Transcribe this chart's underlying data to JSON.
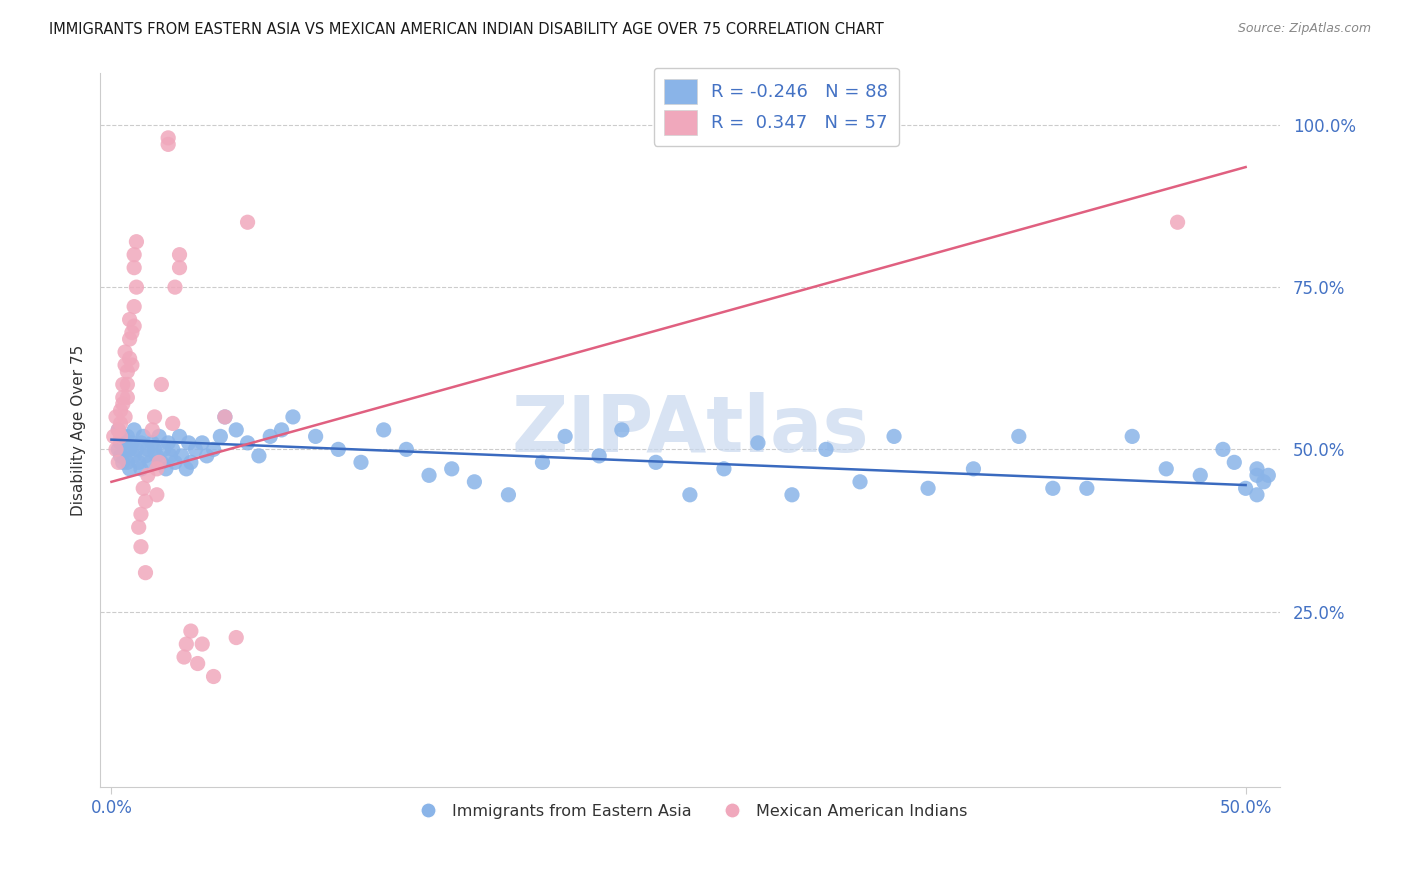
{
  "title": "IMMIGRANTS FROM EASTERN ASIA VS MEXICAN AMERICAN INDIAN DISABILITY AGE OVER 75 CORRELATION CHART",
  "source": "Source: ZipAtlas.com",
  "ylabel": "Disability Age Over 75",
  "legend_blue_r": "R = -0.246",
  "legend_blue_n": "N = 88",
  "legend_pink_r": "R =  0.347",
  "legend_pink_n": "N = 57",
  "legend_blue_series": "Immigrants from Eastern Asia",
  "legend_pink_series": "Mexican American Indians",
  "blue_color": "#8ab4e8",
  "pink_color": "#f0a8bc",
  "blue_line_color": "#3a6abf",
  "pink_line_color": "#e06080",
  "grid_color": "#cccccc",
  "bg_color": "#ffffff",
  "title_color": "#1a1a1a",
  "axis_tick_color": "#4472c4",
  "ylabel_color": "#333333",
  "watermark_color": "#c8d8ee",
  "source_color": "#888888",
  "blue_line_x": [
    0.0,
    0.5
  ],
  "blue_line_y": [
    0.515,
    0.445
  ],
  "pink_line_x": [
    0.0,
    0.5
  ],
  "pink_line_y": [
    0.45,
    0.935
  ],
  "xlim": [
    -0.005,
    0.515
  ],
  "ylim": [
    -0.02,
    1.08
  ],
  "xticks": [
    0.0,
    0.5
  ],
  "xticklabels": [
    "0.0%",
    "50.0%"
  ],
  "yticks": [
    0.25,
    0.5,
    0.75,
    1.0
  ],
  "yticklabels": [
    "25.0%",
    "50.0%",
    "75.0%",
    "100.0%"
  ],
  "blue_x": [
    0.003,
    0.003,
    0.004,
    0.004,
    0.005,
    0.005,
    0.006,
    0.006,
    0.007,
    0.007,
    0.008,
    0.008,
    0.009,
    0.01,
    0.01,
    0.011,
    0.012,
    0.013,
    0.013,
    0.014,
    0.015,
    0.016,
    0.017,
    0.018,
    0.019,
    0.02,
    0.021,
    0.022,
    0.023,
    0.024,
    0.025,
    0.026,
    0.027,
    0.028,
    0.03,
    0.031,
    0.033,
    0.034,
    0.035,
    0.037,
    0.04,
    0.042,
    0.045,
    0.048,
    0.05,
    0.055,
    0.06,
    0.065,
    0.07,
    0.075,
    0.08,
    0.09,
    0.1,
    0.11,
    0.12,
    0.13,
    0.14,
    0.15,
    0.16,
    0.175,
    0.19,
    0.2,
    0.215,
    0.225,
    0.24,
    0.255,
    0.27,
    0.285,
    0.3,
    0.315,
    0.33,
    0.345,
    0.36,
    0.38,
    0.4,
    0.415,
    0.43,
    0.45,
    0.465,
    0.48,
    0.49,
    0.495,
    0.5,
    0.505,
    0.505,
    0.505,
    0.508,
    0.51
  ],
  "blue_y": [
    0.5,
    0.53,
    0.51,
    0.49,
    0.52,
    0.48,
    0.51,
    0.5,
    0.52,
    0.48,
    0.5,
    0.47,
    0.51,
    0.49,
    0.53,
    0.5,
    0.48,
    0.51,
    0.47,
    0.52,
    0.49,
    0.5,
    0.48,
    0.51,
    0.5,
    0.49,
    0.52,
    0.48,
    0.5,
    0.47,
    0.51,
    0.49,
    0.5,
    0.48,
    0.52,
    0.49,
    0.47,
    0.51,
    0.48,
    0.5,
    0.51,
    0.49,
    0.5,
    0.52,
    0.55,
    0.53,
    0.51,
    0.49,
    0.52,
    0.53,
    0.55,
    0.52,
    0.5,
    0.48,
    0.53,
    0.5,
    0.46,
    0.47,
    0.45,
    0.43,
    0.48,
    0.52,
    0.49,
    0.53,
    0.48,
    0.43,
    0.47,
    0.51,
    0.43,
    0.5,
    0.45,
    0.52,
    0.44,
    0.47,
    0.52,
    0.44,
    0.44,
    0.52,
    0.47,
    0.46,
    0.5,
    0.48,
    0.44,
    0.46,
    0.47,
    0.43,
    0.45,
    0.46
  ],
  "pink_x": [
    0.001,
    0.002,
    0.002,
    0.003,
    0.003,
    0.004,
    0.004,
    0.004,
    0.005,
    0.005,
    0.005,
    0.006,
    0.006,
    0.006,
    0.007,
    0.007,
    0.007,
    0.008,
    0.008,
    0.008,
    0.009,
    0.009,
    0.01,
    0.01,
    0.01,
    0.01,
    0.011,
    0.011,
    0.012,
    0.013,
    0.013,
    0.014,
    0.015,
    0.015,
    0.016,
    0.018,
    0.019,
    0.02,
    0.02,
    0.021,
    0.022,
    0.025,
    0.025,
    0.027,
    0.028,
    0.03,
    0.03,
    0.032,
    0.033,
    0.035,
    0.038,
    0.04,
    0.045,
    0.05,
    0.055,
    0.06,
    0.47
  ],
  "pink_y": [
    0.52,
    0.5,
    0.55,
    0.53,
    0.48,
    0.56,
    0.54,
    0.52,
    0.58,
    0.6,
    0.57,
    0.55,
    0.63,
    0.65,
    0.62,
    0.6,
    0.58,
    0.64,
    0.67,
    0.7,
    0.63,
    0.68,
    0.72,
    0.69,
    0.78,
    0.8,
    0.75,
    0.82,
    0.38,
    0.4,
    0.35,
    0.44,
    0.42,
    0.31,
    0.46,
    0.53,
    0.55,
    0.47,
    0.43,
    0.48,
    0.6,
    0.97,
    0.98,
    0.54,
    0.75,
    0.78,
    0.8,
    0.18,
    0.2,
    0.22,
    0.17,
    0.2,
    0.15,
    0.55,
    0.21,
    0.85,
    0.85
  ]
}
